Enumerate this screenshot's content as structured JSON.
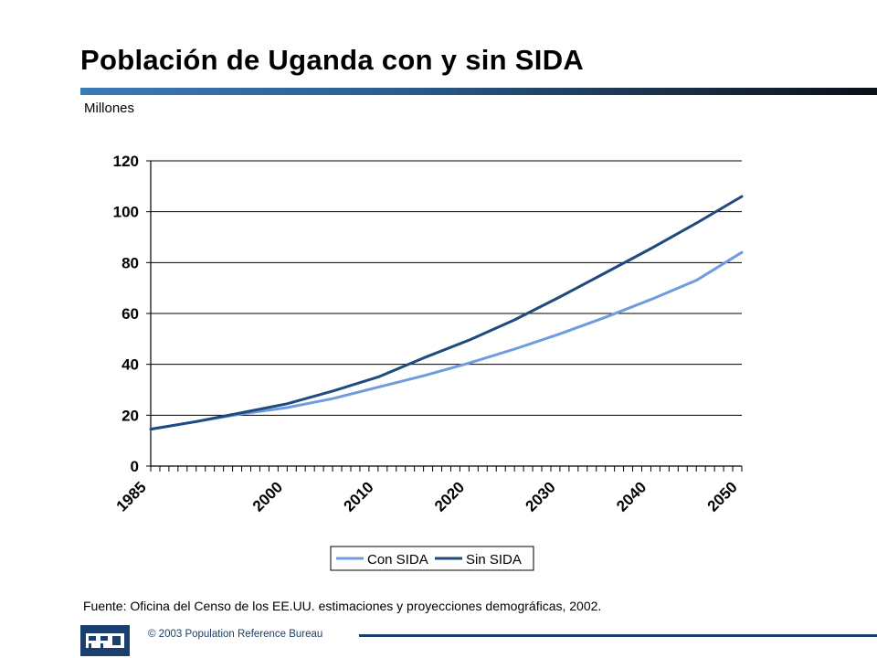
{
  "header": {
    "title": "Población de Uganda con y sin SIDA",
    "units_label": "Millones"
  },
  "chart_data": {
    "type": "line",
    "title": "",
    "xlabel": "",
    "ylabel": "",
    "ylim": [
      0,
      120
    ],
    "yticks": [
      0,
      20,
      40,
      60,
      80,
      100,
      120
    ],
    "xlim": [
      1985,
      2050
    ],
    "xtick_labels": [
      "1985",
      "2000",
      "2010",
      "2020",
      "2030",
      "2040",
      "2050"
    ],
    "grid": "horizontal",
    "legend_position": "bottom-center",
    "x": [
      1985,
      1990,
      1995,
      2000,
      2005,
      2010,
      2015,
      2020,
      2025,
      2030,
      2035,
      2040,
      2045,
      2050
    ],
    "series": [
      {
        "name": "Con SIDA",
        "color": "#6f9be0",
        "values": [
          14.5,
          17.5,
          20.5,
          23,
          26.5,
          31,
          35.5,
          40.5,
          46,
          52,
          58.5,
          65.5,
          73,
          84
        ]
      },
      {
        "name": "Sin SIDA",
        "color": "#1f4a7e",
        "values": [
          14.5,
          17.5,
          21,
          24.5,
          29.5,
          35,
          42.5,
          49.5,
          57.5,
          66.5,
          76,
          85.5,
          95.5,
          106
        ]
      }
    ]
  },
  "footer": {
    "source": "Fuente: Oficina del Censo de los EE.UU. estimaciones y proyecciones demográficas, 2002.",
    "logo_text": "PRB",
    "copyright": "© 2003  Population Reference Bureau",
    "accent_color": "#1a3f6e"
  }
}
